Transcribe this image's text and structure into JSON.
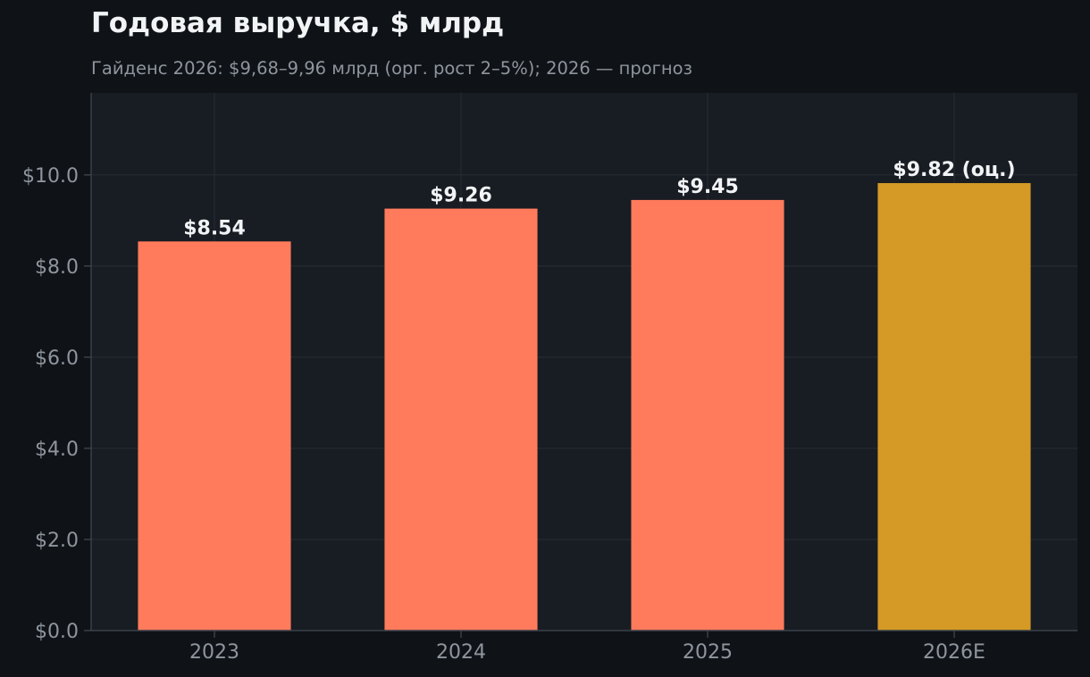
{
  "title": "Годовая выручка, $ млрд",
  "subtitle": "Гайденс 2026: $9,68–9,96 млрд (орг. рост 2–5%); 2026 — прогноз",
  "colors": {
    "background": "#0f1318",
    "plot_background": "#181c23",
    "actual_bar": "#ff7b5c",
    "forecast_bar": "#d49a25",
    "grid": "#262b33",
    "axis": "#3a4049",
    "tick_text": "#8e959d",
    "label_text": "#f1f3f5"
  },
  "chart_data": {
    "type": "bar",
    "title": "Годовая выручка, $ млрд",
    "subtitle": "Гайденс 2026: $9,68–9,96 млрд (орг. рост 2–5%); 2026 — прогноз",
    "categories": [
      "2023",
      "2024",
      "2025",
      "2026E"
    ],
    "values": [
      8.54,
      9.26,
      9.45,
      9.82
    ],
    "data_labels": [
      "$8.54",
      "$9.26",
      "$9.45",
      "$9.82 (оц.)"
    ],
    "forecast": [
      false,
      false,
      false,
      true
    ],
    "xlabel": "",
    "ylabel": "",
    "ylim": [
      0,
      11.8
    ],
    "yticks": [
      0,
      2,
      4,
      6,
      8,
      10
    ],
    "ytick_labels": [
      "$0.0",
      "$2.0",
      "$4.0",
      "$6.0",
      "$8.0",
      "$10.0"
    ],
    "grid": true,
    "legend": "none"
  }
}
